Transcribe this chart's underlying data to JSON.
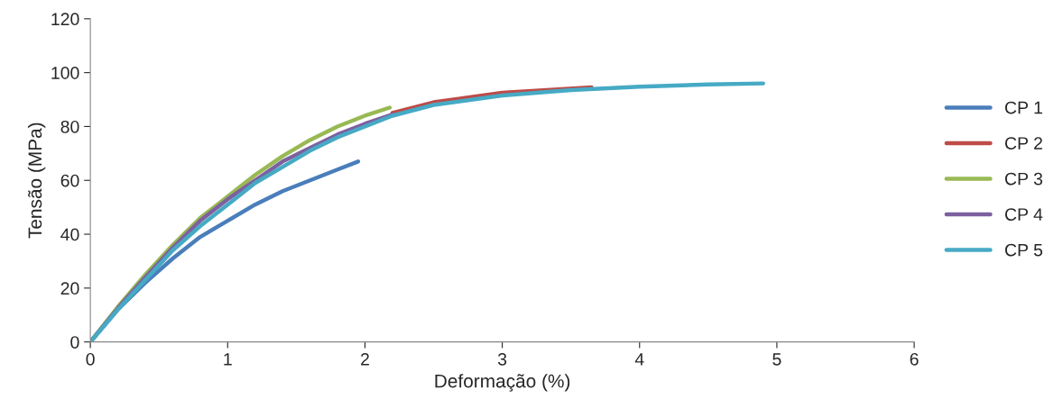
{
  "chart_data": {
    "type": "line",
    "xlabel": "Deformação (%)",
    "ylabel": "Tensão (MPa)",
    "xlim": [
      0,
      6
    ],
    "xticks": [
      0,
      1,
      2,
      3,
      4,
      5,
      6
    ],
    "ylim": [
      0,
      120
    ],
    "yticks": [
      0,
      20,
      40,
      60,
      80,
      100,
      120
    ],
    "grid": false,
    "legend": "right",
    "marker": "none",
    "line_style": "solid",
    "series": [
      {
        "name": "CP 1",
        "color": "#4a7ebb",
        "x": [
          0,
          0.2,
          0.4,
          0.6,
          0.8,
          1.0,
          1.2,
          1.4,
          1.6,
          1.8,
          1.95
        ],
        "values": [
          0,
          12,
          22,
          31,
          39,
          45,
          51,
          56,
          60,
          64,
          67
        ]
      },
      {
        "name": "CP 2",
        "color": "#be4b48",
        "x": [
          2.2,
          2.5,
          3.0,
          3.65
        ],
        "values": [
          85,
          89,
          92.5,
          94.5
        ]
      },
      {
        "name": "CP 3",
        "color": "#98b954",
        "x": [
          0,
          0.2,
          0.4,
          0.6,
          0.8,
          1.0,
          1.2,
          1.4,
          1.6,
          1.8,
          2.0,
          2.18
        ],
        "values": [
          0,
          13,
          25,
          36,
          46,
          54,
          62,
          69,
          75,
          80,
          84,
          87
        ]
      },
      {
        "name": "CP 4",
        "color": "#7d60a0",
        "x": [
          0,
          0.2,
          0.4,
          0.6,
          0.8,
          1.0,
          1.2,
          1.4,
          1.6,
          1.8,
          2.0,
          2.2
        ],
        "values": [
          0,
          12.5,
          24,
          35,
          45,
          53,
          60,
          67,
          72,
          77,
          81,
          84.5
        ]
      },
      {
        "name": "CP 5",
        "color": "#46aac5",
        "x": [
          0,
          0.2,
          0.4,
          0.6,
          0.8,
          1.0,
          1.2,
          1.4,
          1.6,
          1.8,
          2.0,
          2.2,
          2.5,
          3.0,
          3.5,
          4.0,
          4.5,
          4.9
        ],
        "values": [
          0,
          12,
          23,
          34,
          43,
          51,
          59,
          65,
          71,
          76,
          80,
          84,
          88,
          91.5,
          93.5,
          94.8,
          95.6,
          96
        ]
      }
    ]
  }
}
